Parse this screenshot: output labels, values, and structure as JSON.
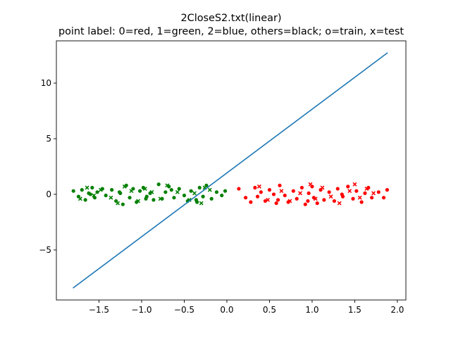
{
  "chart_data": {
    "type": "scatter",
    "title": "2CloseS2.txt(linear)",
    "subtitle": "point label: 0=red, 1=green, 2=blue, others=black; o=train, x=test",
    "xlabel": "",
    "ylabel": "",
    "xlim": [
      -2.0,
      2.1
    ],
    "ylim": [
      -9.5,
      13.8
    ],
    "x_ticks": [
      -1.5,
      -1.0,
      -0.5,
      0.0,
      0.5,
      1.0,
      1.5,
      2.0
    ],
    "x_tick_labels": [
      "−1.5",
      "−1.0",
      "−0.5",
      "0.0",
      "0.5",
      "1.0",
      "1.5",
      "2.0"
    ],
    "y_ticks": [
      -5,
      0,
      5,
      10
    ],
    "y_tick_labels": [
      "−5",
      "0",
      "5",
      "10"
    ],
    "grid": false,
    "legend": "none",
    "line": {
      "name": "",
      "color": "#1f77b4",
      "x": [
        -1.8,
        1.88
      ],
      "y": [
        -8.4,
        12.7
      ]
    },
    "series": [
      {
        "label": 0,
        "marker": "o",
        "set": "train",
        "color": "#ff0000",
        "x": [
          0.14,
          0.22,
          0.28,
          0.33,
          0.36,
          0.4,
          0.45,
          0.5,
          0.55,
          0.6,
          0.62,
          0.68,
          0.72,
          0.78,
          0.82,
          0.88,
          0.92,
          0.96,
          1.0,
          1.02,
          1.06,
          1.1,
          1.14,
          1.2,
          1.26,
          1.3,
          1.36,
          1.42,
          1.48,
          1.52,
          1.58,
          1.62,
          1.66,
          1.7,
          1.78,
          1.84,
          1.88,
          0.58,
          0.95,
          1.35
        ],
        "y": [
          0.5,
          -0.3,
          -0.7,
          0.6,
          -0.2,
          0.2,
          -0.6,
          0.4,
          0.0,
          -0.5,
          0.8,
          -0.1,
          -0.7,
          0.3,
          -0.4,
          0.6,
          -0.9,
          0.1,
          0.7,
          -0.3,
          -0.8,
          0.4,
          -0.5,
          0.2,
          -0.6,
          0.5,
          -0.2,
          0.7,
          -0.4,
          0.3,
          -0.7,
          0.1,
          0.6,
          -0.3,
          0.2,
          -0.3,
          0.4,
          -0.8,
          -0.6,
          0.0
        ]
      },
      {
        "label": 0,
        "marker": "x",
        "set": "test",
        "color": "#ff0000",
        "x": [
          0.38,
          0.48,
          0.64,
          0.74,
          0.86,
          0.98,
          1.04,
          1.12,
          1.22,
          1.32,
          1.44,
          1.5,
          1.56,
          1.64,
          1.72
        ],
        "y": [
          0.7,
          -0.5,
          0.3,
          -0.6,
          0.1,
          0.9,
          -0.4,
          0.6,
          -0.2,
          -0.8,
          0.3,
          0.9,
          -0.3,
          0.5,
          0.1
        ]
      },
      {
        "label": 1,
        "marker": "o",
        "set": "train",
        "color": "#008000",
        "x": [
          -1.8,
          -1.74,
          -1.7,
          -1.66,
          -1.62,
          -1.58,
          -1.55,
          -1.52,
          -1.46,
          -1.42,
          -1.35,
          -1.3,
          -1.26,
          -1.22,
          -1.18,
          -1.14,
          -1.1,
          -1.06,
          -1.02,
          -0.98,
          -0.94,
          -0.9,
          -0.86,
          -0.8,
          -0.76,
          -0.72,
          -0.68,
          -0.62,
          -0.56,
          -0.5,
          -0.46,
          -0.42,
          -0.36,
          -0.32,
          -0.28,
          -0.24,
          -0.18,
          -0.12,
          -0.06,
          -0.02,
          -1.6,
          -1.25,
          -0.95,
          -0.65,
          -0.35
        ],
        "y": [
          0.3,
          -0.2,
          0.4,
          -0.5,
          0.1,
          0.6,
          -0.3,
          0.2,
          0.5,
          -0.1,
          0.4,
          -0.6,
          0.2,
          -0.9,
          0.8,
          -0.3,
          0.5,
          -0.7,
          0.3,
          0.6,
          -0.2,
          0.1,
          -0.5,
          0.9,
          -0.4,
          0.2,
          0.7,
          -0.3,
          0.5,
          -0.1,
          -0.6,
          0.3,
          -0.5,
          0.6,
          -0.2,
          0.8,
          -0.4,
          0.2,
          -0.1,
          0.3,
          0.0,
          0.1,
          -0.4,
          0.4,
          -0.7
        ]
      },
      {
        "label": 1,
        "marker": "x",
        "set": "test",
        "color": "#008000",
        "x": [
          -1.72,
          -1.64,
          -1.56,
          -1.48,
          -1.36,
          -1.28,
          -1.2,
          -1.12,
          -1.04,
          -0.96,
          -0.88,
          -0.78,
          -0.7,
          -0.58,
          -0.44,
          -0.38,
          -0.3,
          -0.26,
          -0.2
        ],
        "y": [
          -0.4,
          0.6,
          -0.1,
          0.4,
          -0.3,
          -0.8,
          0.7,
          0.3,
          -0.6,
          0.5,
          0.2,
          -0.4,
          0.8,
          0.2,
          -0.5,
          0.1,
          -0.8,
          0.6,
          0.4
        ]
      }
    ]
  }
}
